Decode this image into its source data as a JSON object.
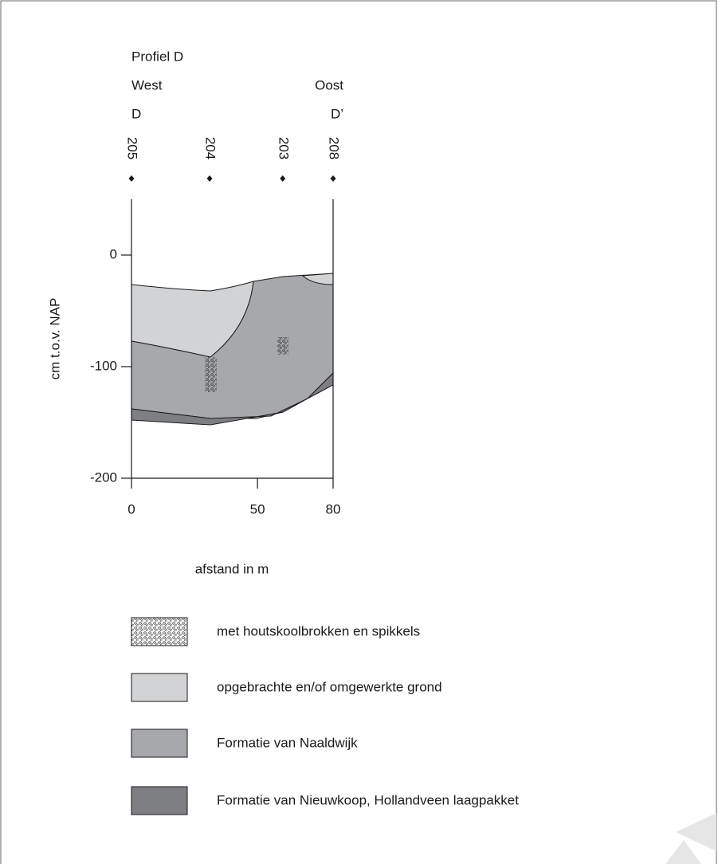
{
  "profile": {
    "title": "Profiel D",
    "west": "West",
    "east": "Oost",
    "start": "D",
    "end": "D’",
    "boreholes": [
      {
        "label": "205",
        "x": 0
      },
      {
        "label": "204",
        "x": 31
      },
      {
        "label": "203",
        "x": 60
      },
      {
        "label": "208",
        "x": 80
      }
    ]
  },
  "axes": {
    "y_label": "cm t.o.v. NAP",
    "x_label": "afstand in m",
    "xlim": [
      0,
      80
    ],
    "ylim": [
      -200,
      50
    ],
    "xticks": [
      0,
      50,
      80
    ],
    "yticks": [
      0,
      -100,
      -200
    ]
  },
  "legend": [
    "met houtskoolbrokken en spikkels",
    "opgebrachte en/of omgewerkte grond",
    "Formatie van Naaldwijk",
    "Formatie van Nieuwkoop, Hollandveen laagpakket"
  ]
}
